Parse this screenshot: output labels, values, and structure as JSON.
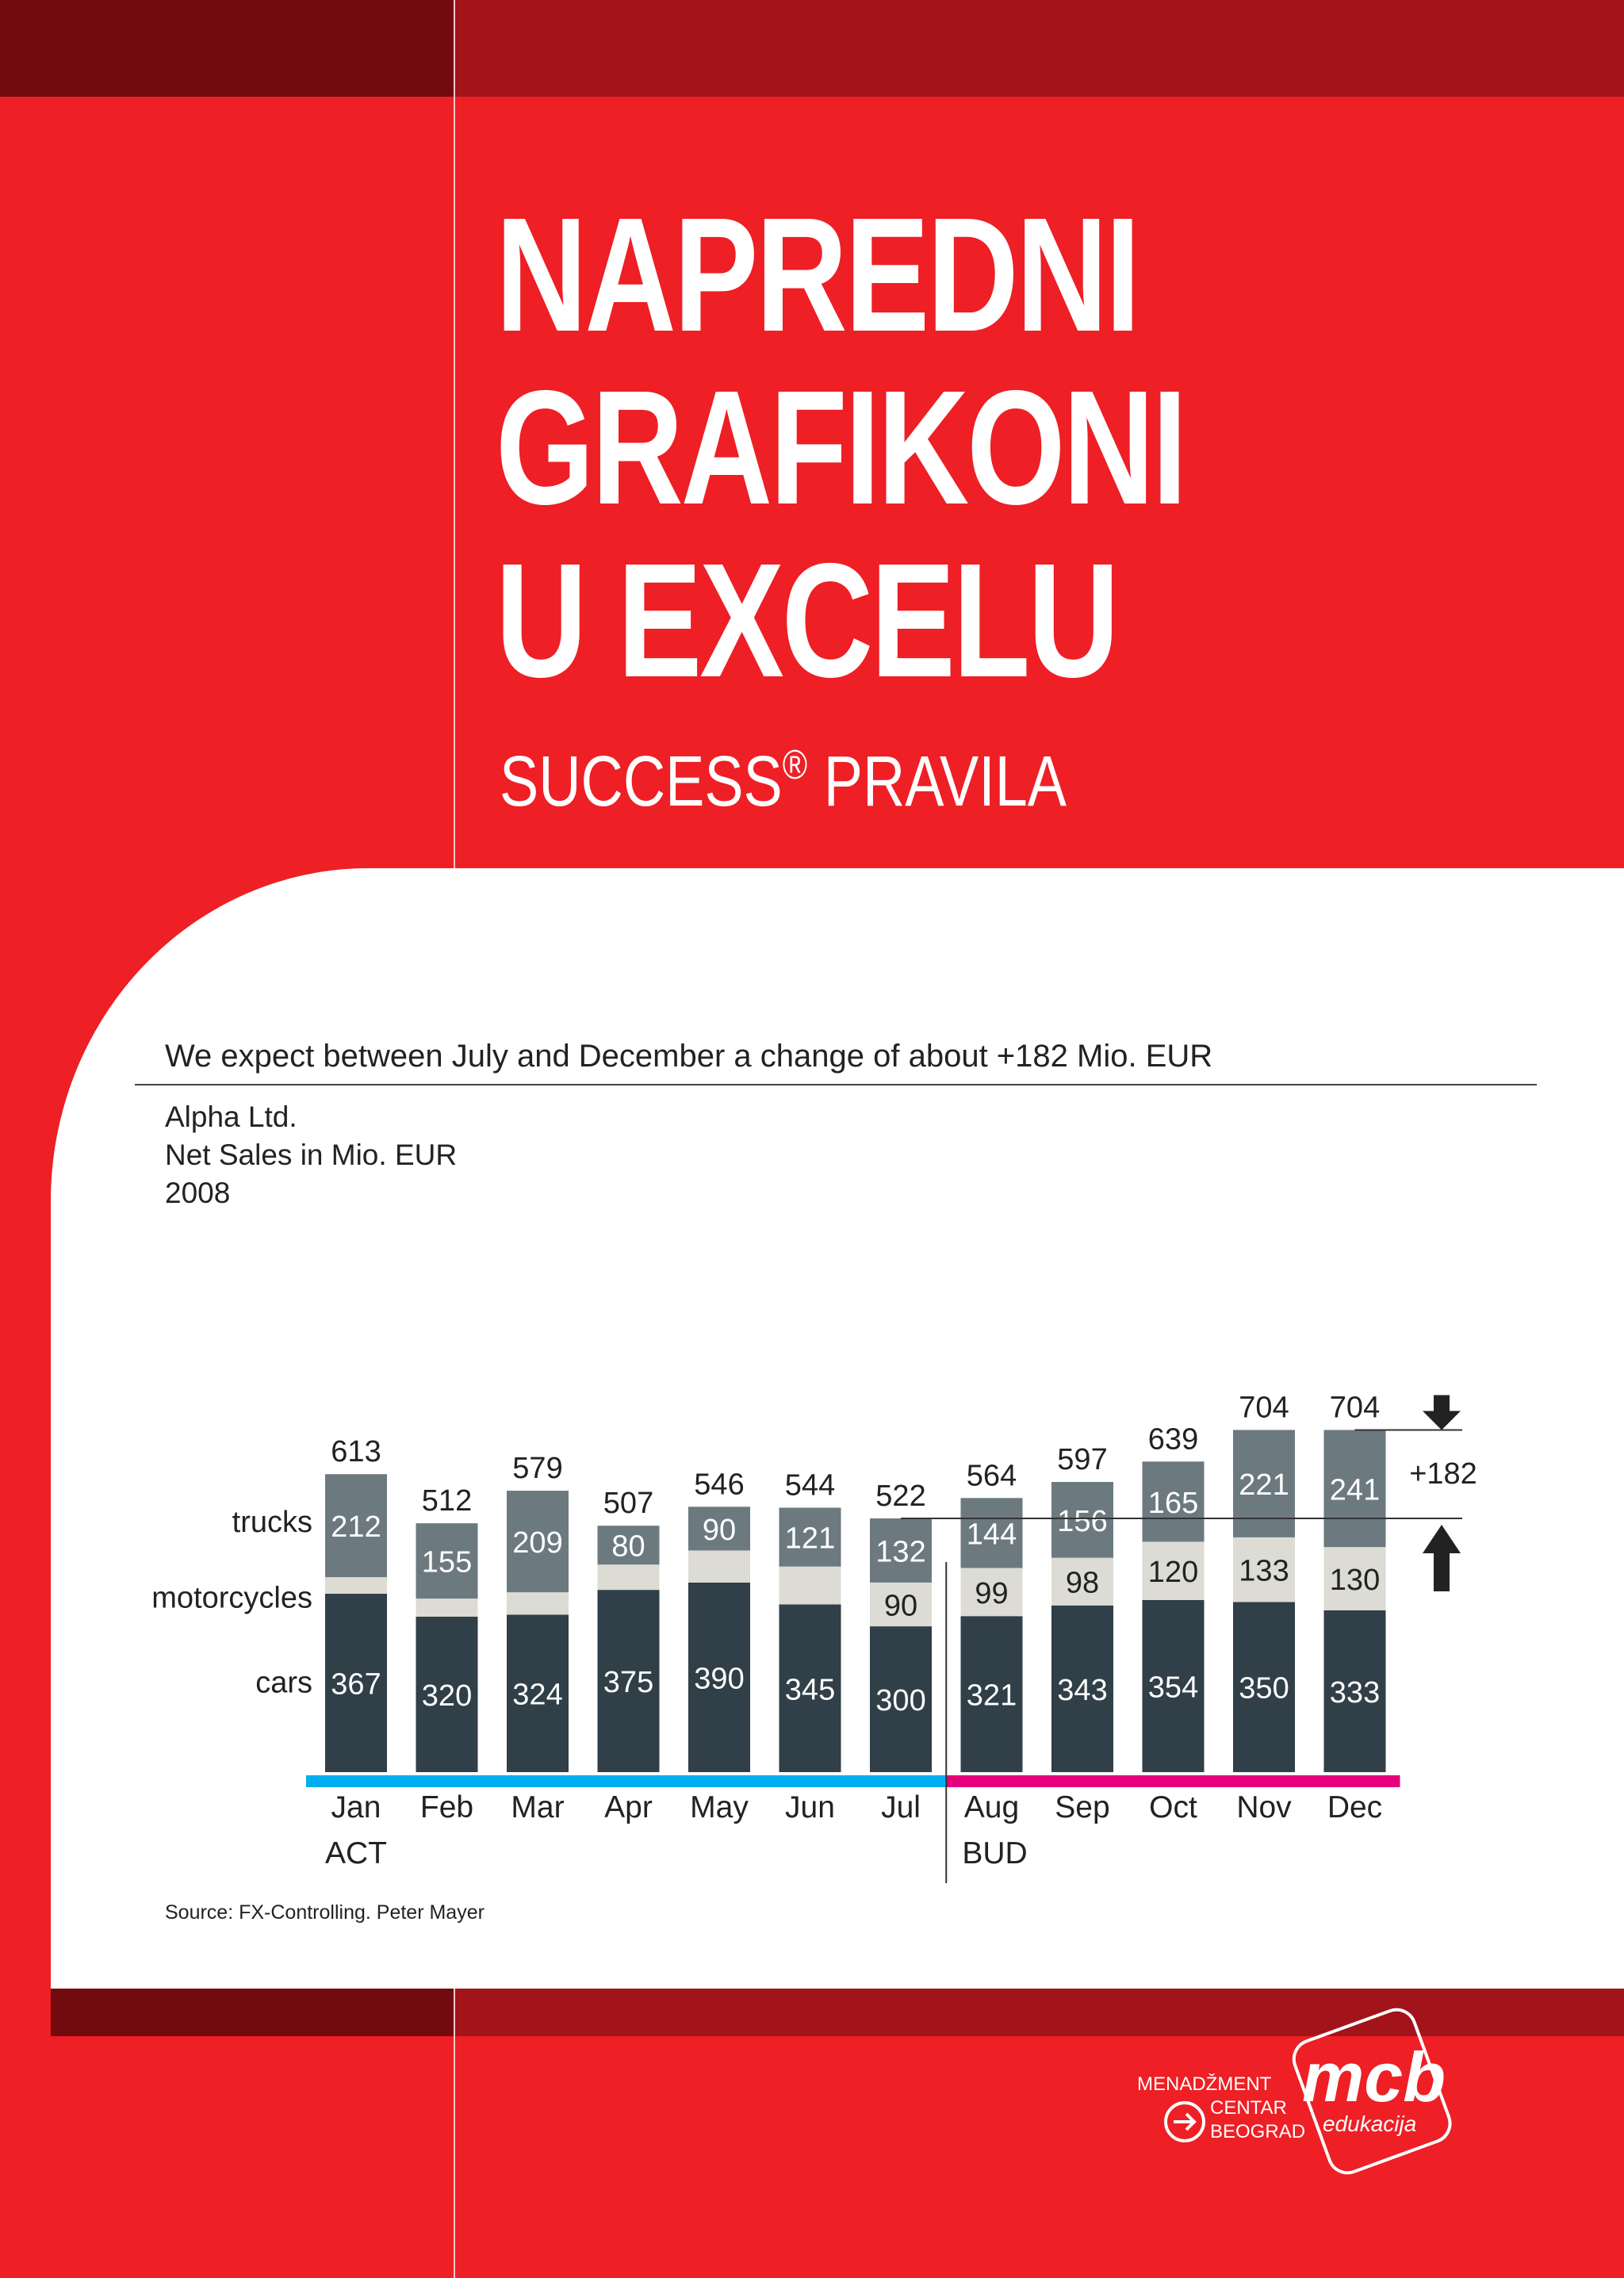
{
  "cover": {
    "title_lines": [
      "NAPREDNI",
      "GRAFIKONI",
      "U EXCELU"
    ],
    "subtitle_pre": "SUCCESS",
    "subtitle_mark": "®",
    "subtitle_post": " PRAVILA"
  },
  "chart_data": {
    "type": "bar",
    "stacked": true,
    "headline": "We expect between July and December a change of about +182 Mio. EUR",
    "info_lines": [
      "Alpha Ltd.",
      "Net Sales in Mio. EUR",
      "2008"
    ],
    "categories": [
      "Jan",
      "Feb",
      "Mar",
      "Apr",
      "May",
      "Jun",
      "Jul",
      "Aug",
      "Sep",
      "Oct",
      "Nov",
      "Dec"
    ],
    "series": [
      {
        "name": "cars",
        "color": "#303f48",
        "values": [
          367,
          320,
          324,
          375,
          390,
          345,
          300,
          321,
          343,
          354,
          350,
          333
        ]
      },
      {
        "name": "motorcycles",
        "color": "#dcdcd4",
        "values": [
          34,
          37,
          46,
          52,
          66,
          78,
          90,
          99,
          98,
          120,
          133,
          130
        ]
      },
      {
        "name": "trucks",
        "color": "#6c7a80",
        "values": [
          212,
          155,
          209,
          80,
          90,
          121,
          132,
          144,
          156,
          165,
          221,
          241
        ]
      }
    ],
    "segment_labels": [
      [
        "367",
        "320",
        "324",
        "375",
        "390",
        "345",
        "300",
        "321",
        "343",
        "354",
        "350",
        "333"
      ],
      [
        "",
        "",
        "",
        "",
        "",
        "",
        "90",
        "99",
        "98",
        "120",
        "133",
        "130"
      ],
      [
        "212",
        "155",
        "209",
        "80",
        "90",
        "121",
        "132",
        "144",
        "156",
        "165",
        "221",
        "241"
      ]
    ],
    "totals": [
      613,
      512,
      579,
      507,
      546,
      544,
      522,
      564,
      597,
      639,
      704,
      704
    ],
    "period_labels": [
      "ACT",
      "BUD"
    ],
    "period_colors": [
      "#00aeef",
      "#e5007e"
    ],
    "split_after_index": 6,
    "delta_label": "+182",
    "delta_from_index": 6,
    "delta_to_index": 11
  },
  "source": "Source: FX-Controlling. Peter Mayer",
  "logo": {
    "line1": "MENADŽMENT",
    "line2": "CENTAR",
    "line3": "BEOGRAD",
    "brand": "mcb",
    "tagline": "edukacija"
  }
}
